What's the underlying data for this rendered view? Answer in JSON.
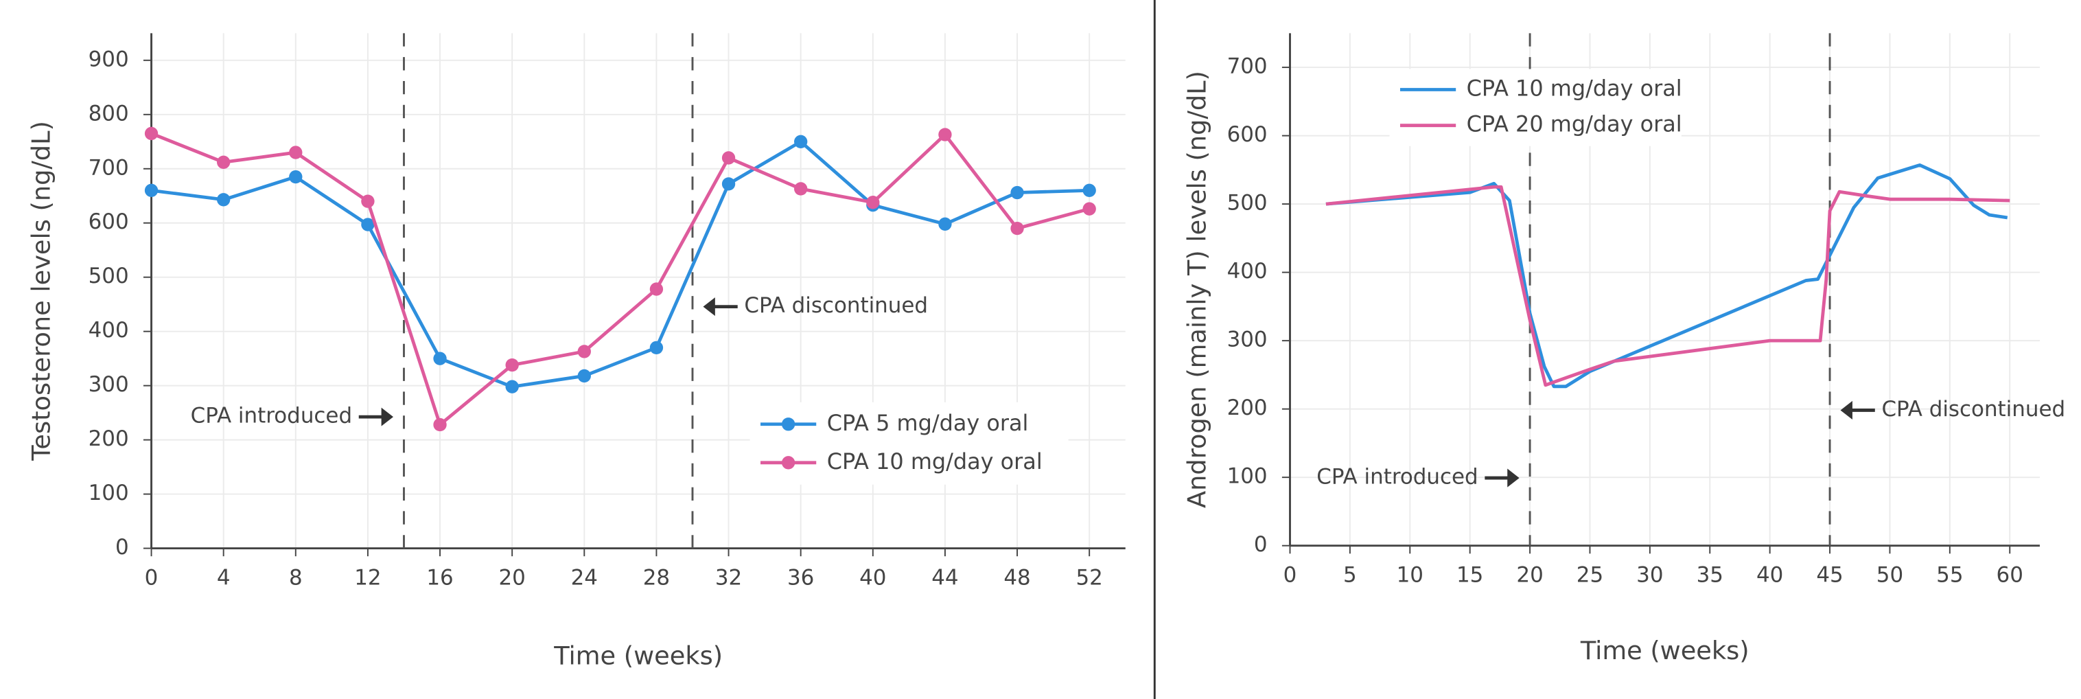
{
  "chart_data": [
    {
      "type": "line",
      "x": [
        0,
        4,
        8,
        12,
        16,
        20,
        24,
        28,
        32,
        36,
        40,
        44,
        48,
        52
      ],
      "series": [
        {
          "name": "CPA 5 mg/day oral",
          "color": "#2e8fdd",
          "values": [
            660,
            643,
            685,
            597,
            350,
            298,
            318,
            370,
            672,
            750,
            633,
            598,
            656,
            660
          ]
        },
        {
          "name": "CPA 10 mg/day oral",
          "color": "#de5b9c",
          "values": [
            765,
            712,
            730,
            640,
            228,
            338,
            363,
            478,
            720,
            663,
            638,
            763,
            590,
            626
          ]
        }
      ],
      "markers": true,
      "xlabel": "Time (weeks)",
      "ylabel": "Testosterone levels (ng/dL)",
      "xlim": [
        0,
        54
      ],
      "ylim": [
        0,
        950
      ],
      "xticks": [
        0,
        4,
        8,
        12,
        16,
        20,
        24,
        28,
        32,
        36,
        40,
        44,
        48,
        52
      ],
      "yticks": [
        0,
        100,
        200,
        300,
        400,
        500,
        600,
        700,
        800,
        900
      ],
      "vlines": [
        14,
        30
      ],
      "annotations": [
        "CPA introduced",
        "CPA discontinued"
      ],
      "grid": true,
      "legend": "lower-right"
    },
    {
      "type": "line",
      "series": [
        {
          "name": "CPA 10 mg/day oral",
          "color": "#2e8fdd",
          "x": [
            3,
            15,
            17,
            18.3,
            20,
            21.2,
            22,
            23,
            25,
            43,
            44,
            47,
            49,
            52.5,
            55,
            57,
            58.3,
            59.8
          ],
          "values": [
            500,
            517,
            530,
            505,
            340,
            262,
            233,
            233,
            255,
            388,
            390,
            495,
            538,
            557,
            537,
            498,
            484,
            480
          ]
        },
        {
          "name": "CPA 20 mg/day oral",
          "color": "#de5b9c",
          "x": [
            3,
            17,
            17.6,
            20,
            21.3,
            25,
            27,
            40,
            44.2,
            44.7,
            45,
            45.8,
            48,
            50,
            55,
            60
          ],
          "values": [
            500,
            525,
            525,
            330,
            235,
            258,
            270,
            300,
            300,
            390,
            490,
            518,
            512,
            507,
            507,
            505
          ]
        }
      ],
      "markers": false,
      "xlabel": "Time (weeks)",
      "ylabel": "Androgen (mainly T) levels (ng/dL)",
      "xlim": [
        0,
        62.5
      ],
      "ylim": [
        0,
        750
      ],
      "xticks": [
        0,
        5,
        10,
        15,
        20,
        25,
        30,
        35,
        40,
        45,
        50,
        55,
        60
      ],
      "yticks": [
        0,
        100,
        200,
        300,
        400,
        500,
        600,
        700
      ],
      "vlines": [
        20,
        45
      ],
      "annotations": [
        "CPA introduced",
        "CPA discontinued"
      ],
      "grid": true,
      "legend": "upper-left"
    }
  ]
}
